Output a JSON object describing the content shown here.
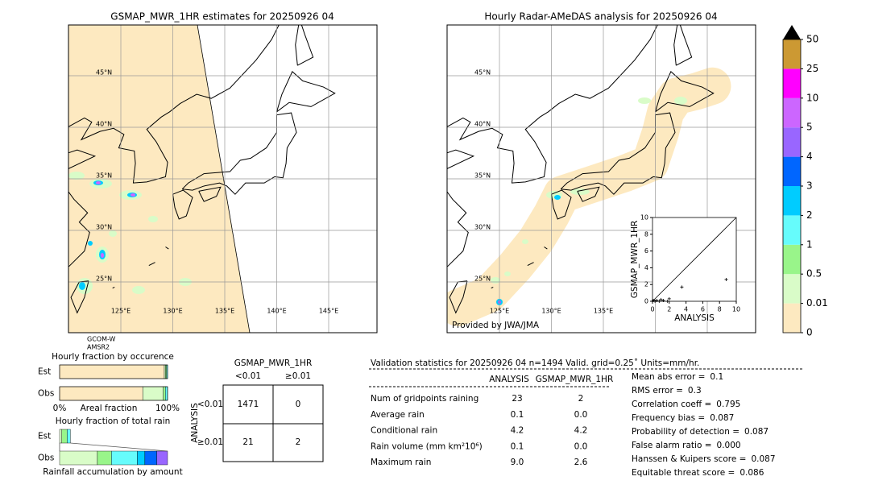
{
  "left_map": {
    "title": "GSMAP_MWR_1HR estimates for 20250926 04",
    "lat_labels": [
      "45°N",
      "40°N",
      "35°N",
      "30°N",
      "25°N"
    ],
    "lon_labels": [
      "125°E",
      "130°E",
      "135°E",
      "140°E",
      "145°E"
    ],
    "satellite": [
      "GCOM-W",
      "AMSR2"
    ]
  },
  "right_map": {
    "title": "Hourly Radar-AMeDAS analysis for 20250926 04",
    "lat_labels": [
      "45°N",
      "40°N",
      "35°N",
      "30°N",
      "25°N"
    ],
    "lon_labels": [
      "125°E",
      "130°E",
      "135°E"
    ],
    "credit": "Provided by JWA/JMA"
  },
  "scatter": {
    "type": "scatter",
    "x_label": "ANALYSIS",
    "y_label": "GSMAP_MWR_1HR",
    "xlim": [
      0,
      10
    ],
    "ylim": [
      0,
      10
    ],
    "xticks": [
      0,
      2,
      4,
      6,
      8,
      10
    ],
    "yticks": [
      0,
      2,
      4,
      6,
      8,
      10
    ],
    "x": [
      0.1,
      0.3,
      0.5,
      0.8,
      1.0,
      1.3,
      1.8,
      2.0,
      3.5,
      8.8
    ],
    "y": [
      0.1,
      0,
      0.1,
      0,
      0.2,
      0.1,
      0,
      0.3,
      1.7,
      2.6
    ]
  },
  "colorbar": {
    "bounds": [
      0,
      0.01,
      0.5,
      1,
      2,
      3,
      4,
      5,
      10,
      25,
      50
    ],
    "colors": [
      "#fde9c0",
      "#d9fcc8",
      "#99f58a",
      "#66fcfc",
      "#00ccff",
      "#0066ff",
      "#9966ff",
      "#cc66ff",
      "#ff00ff",
      "#cc9933"
    ],
    "extend_color": "#000000"
  },
  "occurrence": {
    "title": "Hourly fraction by occurence",
    "rows": [
      "Est",
      "Obs"
    ],
    "x_label": "Areal fraction",
    "xlim": [
      0,
      100
    ],
    "xticks": [
      {
        "value": 0,
        "label": "0%"
      },
      {
        "value": 100,
        "label": "100%"
      }
    ],
    "est": [
      97,
      1,
      1,
      1
    ],
    "obs": [
      77,
      19,
      2,
      2
    ]
  },
  "total_rain": {
    "title": "Hourly fraction of total rain",
    "rows": [
      "Est",
      "Obs"
    ],
    "x_label": "Rainfall accumulation by amount",
    "xlim": [
      0,
      100
    ],
    "est": [
      2,
      5,
      3
    ],
    "obs": [
      35,
      13,
      24,
      7,
      11,
      10
    ]
  },
  "contingency": {
    "title": "GSMAP_MWR_1HR",
    "col_labels": [
      "<0.01",
      "≥0.01"
    ],
    "row_title": "ANALYSIS",
    "row_labels": [
      "<0.01",
      "≥0.01"
    ],
    "cells": [
      [
        "1471",
        "0"
      ],
      [
        "21",
        "2"
      ]
    ]
  },
  "validation": {
    "title": "Validation statistics for 20250926 04  n=1494 Valid. grid=0.25˚ Units=mm/hr.",
    "columns": [
      "ANALYSIS",
      "GSMAP_MWR_1HR"
    ],
    "rows": [
      {
        "label": "Num of gridpoints raining",
        "values": [
          "23",
          "2"
        ]
      },
      {
        "label": "Average rain",
        "values": [
          "0.1",
          "0.0"
        ]
      },
      {
        "label": "Conditional rain",
        "values": [
          "4.2",
          "4.2"
        ]
      },
      {
        "label": "Rain volume (mm km²10⁶)",
        "values": [
          "0.1",
          "0.0"
        ]
      },
      {
        "label": "Maximum rain",
        "values": [
          "9.0",
          "2.6"
        ]
      }
    ],
    "scores": [
      {
        "label": "Mean abs error =",
        "value": "0.1"
      },
      {
        "label": "RMS error =",
        "value": "0.3"
      },
      {
        "label": "Correlation coeff =",
        "value": "0.795"
      },
      {
        "label": "Frequency bias =",
        "value": "0.087"
      },
      {
        "label": "Probability of detection =",
        "value": "0.087"
      },
      {
        "label": "False alarm ratio =",
        "value": "0.000"
      },
      {
        "label": "Hanssen & Kuipers score =",
        "value": "0.087"
      },
      {
        "label": "Equitable threat score =",
        "value": "0.086"
      }
    ]
  }
}
